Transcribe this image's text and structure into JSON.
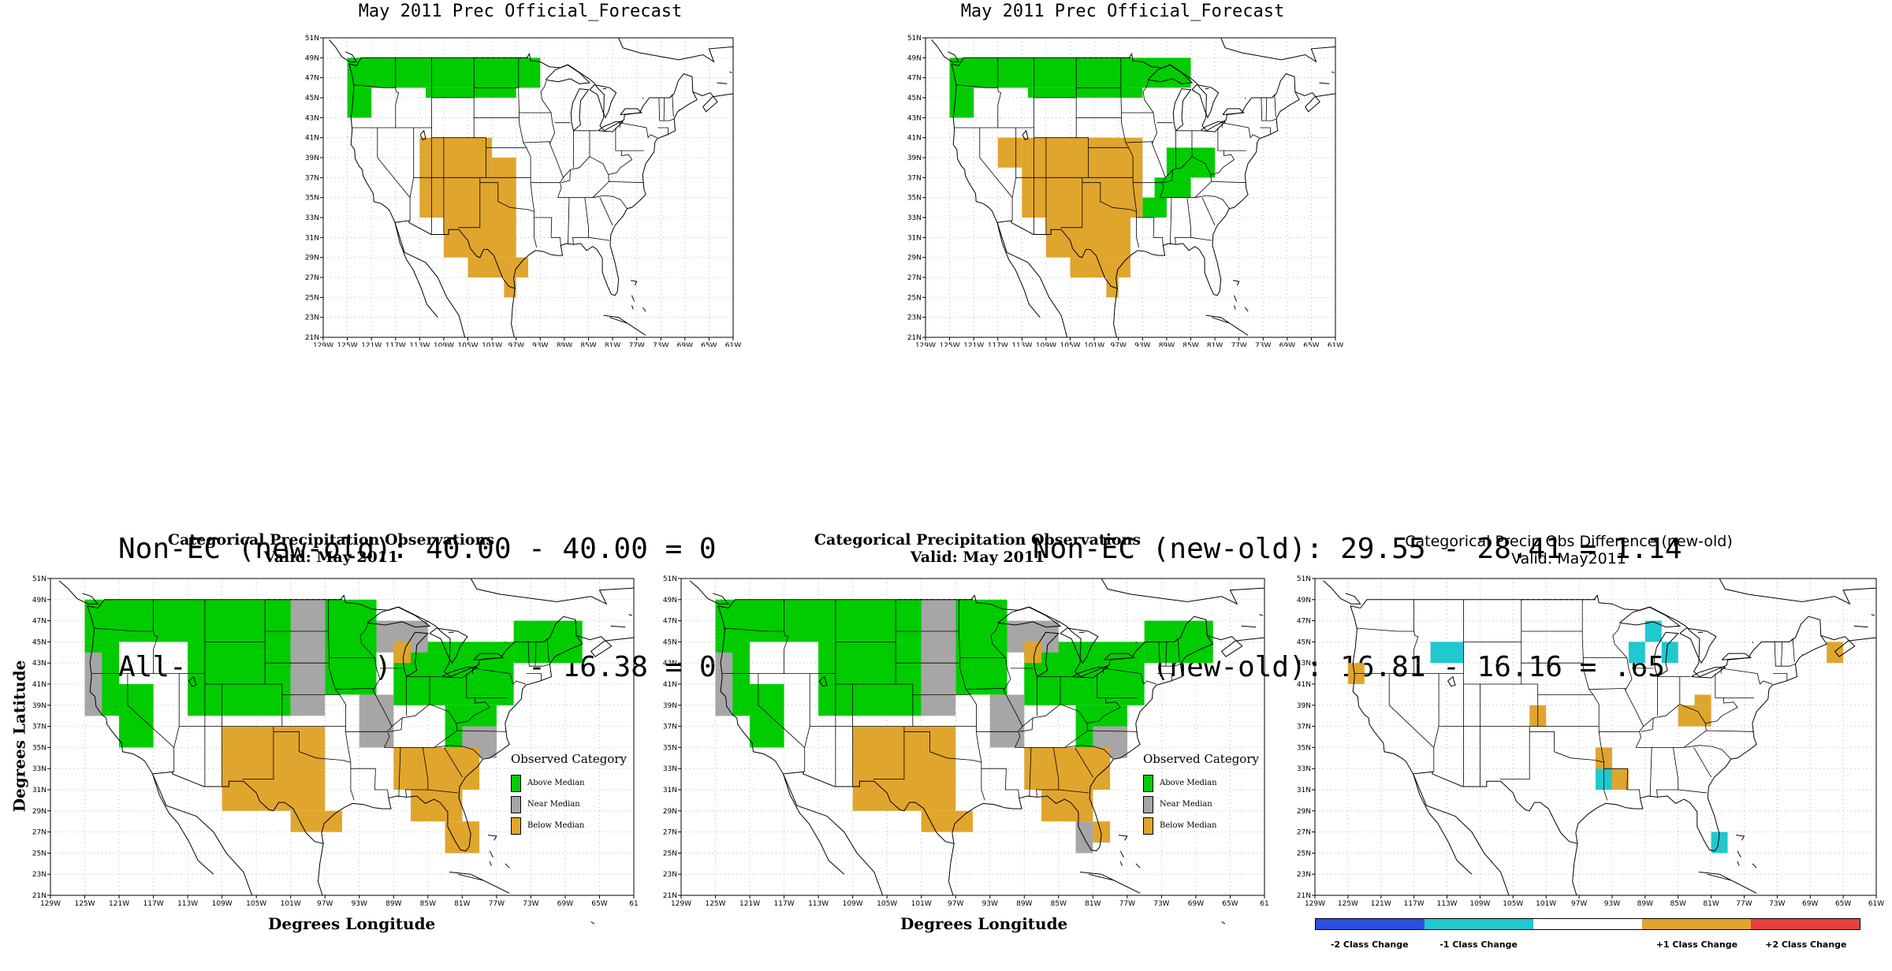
{
  "top_left": {
    "title": "May 2011 Prec Official_Forecast",
    "x_ticks": [
      "129W",
      "125W",
      "121W",
      "117W",
      "113W",
      "109W",
      "105W",
      "101W",
      "97W",
      "93W",
      "89W",
      "85W",
      "81W",
      "77W",
      "73W",
      "69W",
      "65W",
      "61W"
    ],
    "y_ticks": [
      "21N",
      "23N",
      "25N",
      "27N",
      "29N",
      "31N",
      "33N",
      "35N",
      "37N",
      "39N",
      "41N",
      "43N",
      "45N",
      "47N",
      "49N",
      "51N"
    ]
  },
  "top_right": {
    "title": "May 2011 Prec Official_Forecast",
    "x_ticks": [
      "129W",
      "125W",
      "121W",
      "117W",
      "113W",
      "109W",
      "105W",
      "101W",
      "97W",
      "93W",
      "89W",
      "85W",
      "81W",
      "77W",
      "73W",
      "69W",
      "65W",
      "61W"
    ],
    "y_ticks": [
      "21N",
      "23N",
      "25N",
      "27N",
      "29N",
      "31N",
      "33N",
      "35N",
      "37N",
      "39N",
      "41N",
      "43N",
      "45N",
      "47N",
      "49N",
      "51N"
    ]
  },
  "stats_left": {
    "line1": "Non-EC (new-old): 40.00 - 40.00 = 0",
    "line2": "All-FC (new-old): 16.38 - 16.38 = 0"
  },
  "stats_right": {
    "line1": "Non-EC (new-old): 29.55 - 28.41 = 1.14",
    "line2": "All-FC (new-old): 16.81 - 16.16 = .65"
  },
  "bottom_left": {
    "title": "Categorical Precipitation Observations",
    "subtitle": "Valid: May 2011",
    "xlabel": "Degrees Longitude",
    "ylabel": "Degrees Latitude",
    "x_ticks": [
      "129W",
      "125W",
      "121W",
      "117W",
      "113W",
      "109W",
      "105W",
      "101W",
      "97W",
      "93W",
      "89W",
      "85W",
      "81W",
      "77W",
      "73W",
      "69W",
      "65W",
      "61"
    ],
    "y_ticks": [
      "21N",
      "23N",
      "25N",
      "27N",
      "29N",
      "31N",
      "33N",
      "35N",
      "37N",
      "39N",
      "41N",
      "43N",
      "45N",
      "47N",
      "49N",
      "51N"
    ]
  },
  "bottom_middle": {
    "title": "Categorical Precipitation Observations",
    "subtitle": "Valid: May 2011",
    "xlabel": "Degrees Longitude",
    "x_ticks": [
      "129W",
      "125W",
      "121W",
      "117W",
      "113W",
      "109W",
      "105W",
      "101W",
      "97W",
      "93W",
      "89W",
      "85W",
      "81W",
      "77W",
      "73W",
      "69W",
      "65W",
      "61"
    ],
    "y_ticks": [
      "21N",
      "23N",
      "25N",
      "27N",
      "29N",
      "31N",
      "33N",
      "35N",
      "37N",
      "39N",
      "41N",
      "43N",
      "45N",
      "47N",
      "49N",
      "51N"
    ]
  },
  "bottom_right": {
    "title": "Categorical Precip Obs Difference (new-old)",
    "subtitle": "Valid: May2011",
    "x_ticks": [
      "129W",
      "125W",
      "121W",
      "117W",
      "113W",
      "109W",
      "105W",
      "101W",
      "97W",
      "93W",
      "89W",
      "85W",
      "81W",
      "77W",
      "73W",
      "69W",
      "65W",
      "61W"
    ],
    "y_ticks": [
      "21N",
      "23N",
      "25N",
      "27N",
      "29N",
      "31N",
      "33N",
      "35N",
      "37N",
      "39N",
      "41N",
      "43N",
      "45N",
      "47N",
      "49N",
      "51N"
    ]
  },
  "obs_legend": {
    "title": "Observed Category",
    "items": [
      {
        "label": "Above Median",
        "color": "#00cc00"
      },
      {
        "label": "Near Median",
        "color": "#a6a6a6"
      },
      {
        "label": "Below Median",
        "color": "#e0a52d"
      }
    ]
  },
  "diff_legend": {
    "items": [
      {
        "label": "-2 Class Change",
        "color": "#2e4fe0"
      },
      {
        "label": "-1 Class Change",
        "color": "#20c8d0"
      },
      {
        "label": "",
        "color": "#ffffff"
      },
      {
        "label": "+1 Class Change",
        "color": "#e0a52d"
      },
      {
        "label": "+2 Class Change",
        "color": "#e64040"
      }
    ]
  },
  "colors": {
    "above": "#00cc00",
    "near": "#a6a6a6",
    "below": "#e0a52d",
    "diff_minus1": "#20c8d0",
    "diff_plus1": "#e0a52d"
  },
  "map_data": {
    "extent": {
      "lon": [
        -129,
        -61
      ],
      "lat": [
        21,
        51
      ]
    },
    "top_left_cells": {
      "above": [
        [
          -125,
          49,
          -93,
          46
        ],
        [
          -125,
          46,
          -121,
          43
        ],
        [
          -112,
          46,
          -97,
          45
        ]
      ],
      "below": [
        [
          -113,
          41,
          -101,
          33
        ],
        [
          -101,
          39,
          -97,
          33
        ],
        [
          -109,
          33,
          -97,
          29
        ],
        [
          -105,
          29,
          -95,
          27
        ],
        [
          -99,
          27,
          -97,
          25
        ]
      ]
    },
    "top_right_cells": {
      "above": [
        [
          -125,
          49,
          -85,
          46
        ],
        [
          -125,
          46,
          -121,
          43
        ],
        [
          -112,
          46,
          -93,
          45
        ],
        [
          -89,
          40,
          -81,
          37
        ],
        [
          -91,
          37,
          -85,
          35
        ],
        [
          -93,
          35,
          -89,
          33
        ]
      ],
      "below": [
        [
          -113,
          41,
          -93,
          33
        ],
        [
          -117,
          41,
          -113,
          38
        ],
        [
          -109,
          33,
          -95,
          29
        ],
        [
          -105,
          29,
          -95,
          27
        ],
        [
          -99,
          27,
          -97,
          25
        ]
      ]
    },
    "bottom_left_cells": {
      "above": [
        [
          -125,
          49,
          -97,
          45
        ],
        [
          -125,
          45,
          -121,
          38
        ],
        [
          -121,
          41,
          -117,
          35
        ],
        [
          -113,
          45,
          -101,
          38
        ],
        [
          -97,
          49,
          -91,
          40
        ],
        [
          -89,
          45,
          -75,
          39
        ],
        [
          -83,
          39,
          -77,
          35
        ],
        [
          -75,
          47,
          -67,
          43
        ]
      ],
      "near": [
        [
          -125,
          44,
          -123,
          38
        ],
        [
          -101,
          49,
          -97,
          38
        ],
        [
          -93,
          40,
          -89,
          35
        ],
        [
          -91,
          47,
          -85,
          44
        ],
        [
          -81,
          37,
          -77,
          34
        ]
      ],
      "below": [
        [
          -109,
          37,
          -97,
          29
        ],
        [
          -101,
          29,
          -95,
          27
        ],
        [
          -89,
          35,
          -79,
          31
        ],
        [
          -87,
          31,
          -81,
          28
        ],
        [
          -83,
          28,
          -79,
          25
        ],
        [
          -89,
          45,
          -87,
          43
        ]
      ]
    },
    "bottom_middle_cells": {
      "above": [
        [
          -125,
          49,
          -99,
          45
        ],
        [
          -125,
          45,
          -121,
          38
        ],
        [
          -121,
          41,
          -117,
          35
        ],
        [
          -113,
          45,
          -101,
          38
        ],
        [
          -97,
          49,
          -91,
          40
        ],
        [
          -89,
          45,
          -75,
          39
        ],
        [
          -83,
          39,
          -77,
          35
        ],
        [
          -75,
          47,
          -67,
          43
        ]
      ],
      "near": [
        [
          -125,
          44,
          -123,
          38
        ],
        [
          -101,
          49,
          -97,
          38
        ],
        [
          -93,
          40,
          -89,
          35
        ],
        [
          -91,
          47,
          -85,
          44
        ],
        [
          -81,
          37,
          -77,
          34
        ],
        [
          -83,
          28,
          -81,
          25
        ]
      ],
      "below": [
        [
          -109,
          37,
          -97,
          29
        ],
        [
          -101,
          29,
          -95,
          27
        ],
        [
          -89,
          35,
          -79,
          31
        ],
        [
          -87,
          31,
          -81,
          28
        ],
        [
          -81,
          28,
          -79,
          26
        ],
        [
          -89,
          45,
          -87,
          43
        ]
      ]
    },
    "diff_cells": {
      "minus1": [
        [
          -115,
          45,
          -111,
          43
        ],
        [
          -91,
          45,
          -89,
          43
        ],
        [
          -87,
          45,
          -85,
          43
        ],
        [
          -89,
          47,
          -87,
          45
        ],
        [
          -95,
          33,
          -93,
          31
        ],
        [
          -81,
          27,
          -79,
          25
        ]
      ],
      "plus1": [
        [
          -125,
          43,
          -123,
          41
        ],
        [
          -103,
          39,
          -101,
          37
        ],
        [
          -95,
          35,
          -93,
          33
        ],
        [
          -93,
          33,
          -91,
          31
        ],
        [
          -85,
          39,
          -81,
          37
        ],
        [
          -83,
          40,
          -81,
          39
        ],
        [
          -67,
          45,
          -65,
          43
        ]
      ]
    }
  }
}
